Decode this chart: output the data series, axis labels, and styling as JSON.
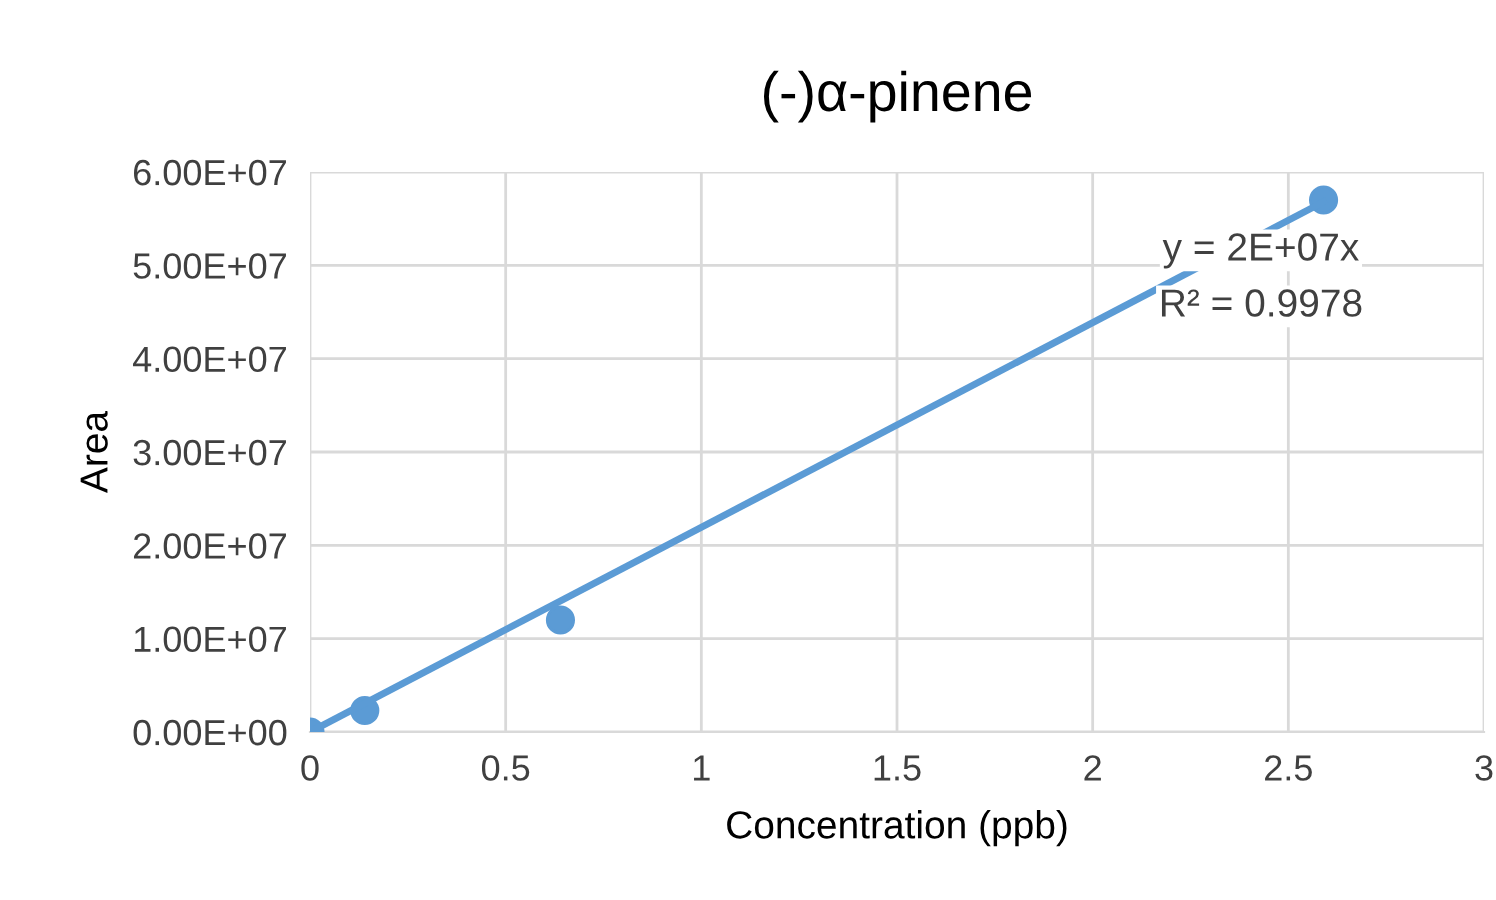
{
  "chart_data": {
    "type": "scatter",
    "title": "(-)α-pinene",
    "xlabel": "Concentration (ppb)",
    "ylabel": "Area",
    "xlim": [
      0,
      3
    ],
    "xticks": [
      0,
      0.5,
      1,
      1.5,
      2,
      2.5,
      3
    ],
    "ylim": [
      0,
      60000000
    ],
    "yticks": [
      {
        "value": 0,
        "label": "0.00E+00"
      },
      {
        "value": 10000000,
        "label": "1.00E+07"
      },
      {
        "value": 20000000,
        "label": "2.00E+07"
      },
      {
        "value": 30000000,
        "label": "3.00E+07"
      },
      {
        "value": 40000000,
        "label": "4.00E+07"
      },
      {
        "value": 50000000,
        "label": "5.00E+07"
      },
      {
        "value": 60000000,
        "label": "6.00E+07"
      }
    ],
    "grid": true,
    "marker": "circle",
    "series": [
      {
        "color": "#5b9bd5",
        "x": [
          0,
          0.14,
          0.64,
          2.59
        ],
        "values": [
          0,
          2300000,
          12000000,
          57000000
        ]
      },
      {
        "type": "line",
        "marker": "none",
        "color": "#5b9bd5",
        "x": [
          0,
          2.59
        ],
        "values": [
          0,
          56800000
        ]
      }
    ],
    "annotations": [
      "y = 2E+07x",
      "R² = 0.9978"
    ]
  }
}
